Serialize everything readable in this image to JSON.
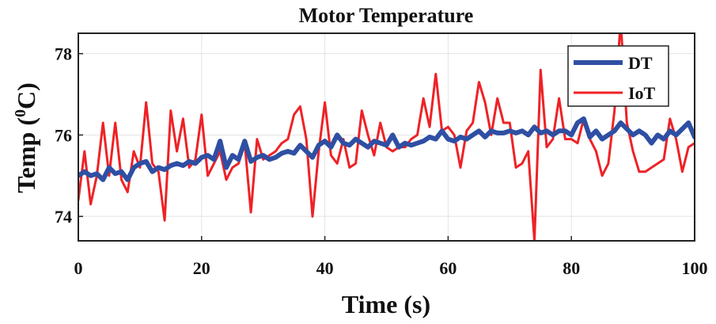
{
  "chart_data": {
    "type": "line",
    "title": "Motor Temperature",
    "xlabel": "Time (s)",
    "ylabel_main": "Temp (",
    "ylabel_sup": "0",
    "ylabel_tail": "C)",
    "xlim": [
      0,
      100
    ],
    "ylim": [
      73.4,
      78.5
    ],
    "xticks": [
      0,
      20,
      40,
      60,
      80,
      100
    ],
    "yticks": [
      74,
      76,
      78
    ],
    "grid": true,
    "legend_position": "top-right",
    "series": [
      {
        "name": "DT",
        "color": "#2e4fa3",
        "x": [
          0,
          1,
          2,
          3,
          4,
          5,
          6,
          7,
          8,
          9,
          10,
          11,
          12,
          13,
          14,
          15,
          16,
          17,
          18,
          19,
          20,
          21,
          22,
          23,
          24,
          25,
          26,
          27,
          28,
          29,
          30,
          31,
          32,
          33,
          34,
          35,
          36,
          37,
          38,
          39,
          40,
          41,
          42,
          43,
          44,
          45,
          46,
          47,
          48,
          49,
          50,
          51,
          52,
          53,
          54,
          55,
          56,
          57,
          58,
          59,
          60,
          61,
          62,
          63,
          64,
          65,
          66,
          67,
          68,
          69,
          70,
          71,
          72,
          73,
          74,
          75,
          76,
          77,
          78,
          79,
          80,
          81,
          82,
          83,
          84,
          85,
          86,
          87,
          88,
          89,
          90,
          91,
          92,
          93,
          94,
          95,
          96,
          97,
          98,
          99,
          100
        ],
        "values": [
          75.0,
          75.1,
          75.0,
          75.05,
          74.9,
          75.2,
          75.05,
          75.1,
          74.9,
          75.2,
          75.3,
          75.35,
          75.1,
          75.2,
          75.15,
          75.25,
          75.3,
          75.25,
          75.35,
          75.3,
          75.45,
          75.5,
          75.4,
          75.85,
          75.2,
          75.5,
          75.4,
          75.85,
          75.35,
          75.45,
          75.5,
          75.4,
          75.45,
          75.55,
          75.6,
          75.55,
          75.75,
          75.6,
          75.45,
          75.75,
          75.85,
          75.7,
          76.0,
          75.8,
          75.75,
          75.9,
          75.8,
          75.7,
          75.85,
          75.8,
          75.75,
          76.0,
          75.7,
          75.8,
          75.75,
          75.8,
          75.85,
          75.95,
          75.9,
          76.1,
          75.9,
          75.85,
          75.95,
          75.9,
          76.0,
          76.1,
          75.95,
          76.1,
          76.05,
          76.05,
          76.1,
          76.05,
          76.1,
          76.0,
          76.2,
          76.05,
          76.1,
          76.0,
          76.1,
          76.1,
          76.0,
          76.3,
          76.4,
          75.95,
          76.1,
          75.9,
          76.0,
          76.1,
          76.3,
          76.15,
          76.0,
          76.1,
          76.0,
          75.8,
          76.0,
          75.9,
          76.1,
          76.0,
          76.15,
          76.3,
          75.95
        ]
      },
      {
        "name": "IoT",
        "color": "#ee2226",
        "x": [
          0,
          1,
          2,
          3,
          4,
          5,
          6,
          7,
          8,
          9,
          10,
          11,
          12,
          13,
          14,
          15,
          16,
          17,
          18,
          19,
          20,
          21,
          22,
          23,
          24,
          25,
          26,
          27,
          28,
          29,
          30,
          31,
          32,
          33,
          34,
          35,
          36,
          37,
          38,
          39,
          40,
          41,
          42,
          43,
          44,
          45,
          46,
          47,
          48,
          49,
          50,
          51,
          52,
          53,
          54,
          55,
          56,
          57,
          58,
          59,
          60,
          61,
          62,
          63,
          64,
          65,
          66,
          67,
          68,
          69,
          70,
          71,
          72,
          73,
          74,
          75,
          76,
          77,
          78,
          79,
          80,
          81,
          82,
          83,
          84,
          85,
          86,
          87,
          88,
          89,
          90,
          91,
          92,
          93,
          94,
          95,
          96,
          97,
          98,
          99,
          100
        ],
        "values": [
          74.4,
          75.6,
          74.3,
          75.0,
          76.3,
          75.0,
          76.3,
          74.9,
          74.6,
          75.6,
          75.2,
          76.8,
          75.3,
          75.1,
          73.9,
          76.6,
          75.6,
          76.4,
          75.2,
          75.4,
          76.5,
          75.0,
          75.3,
          75.6,
          74.9,
          75.2,
          75.3,
          75.8,
          74.1,
          75.9,
          75.4,
          75.5,
          75.6,
          75.8,
          75.9,
          76.5,
          76.7,
          75.9,
          74.0,
          75.6,
          76.8,
          75.5,
          75.3,
          75.9,
          75.2,
          75.3,
          76.6,
          76.0,
          75.5,
          76.3,
          75.7,
          75.6,
          75.7,
          75.7,
          75.9,
          76.0,
          76.9,
          76.2,
          77.5,
          76.1,
          76.2,
          76.0,
          75.2,
          76.1,
          76.3,
          77.3,
          76.8,
          76.0,
          76.9,
          76.3,
          76.3,
          75.2,
          75.3,
          75.6,
          73.4,
          77.6,
          75.7,
          75.9,
          76.9,
          75.9,
          75.9,
          75.8,
          76.4,
          75.9,
          75.6,
          75.0,
          75.3,
          76.6,
          78.8,
          76.3,
          75.6,
          75.1,
          75.1,
          75.2,
          75.3,
          75.4,
          76.4,
          75.9,
          75.1,
          75.7,
          75.8
        ]
      }
    ]
  }
}
